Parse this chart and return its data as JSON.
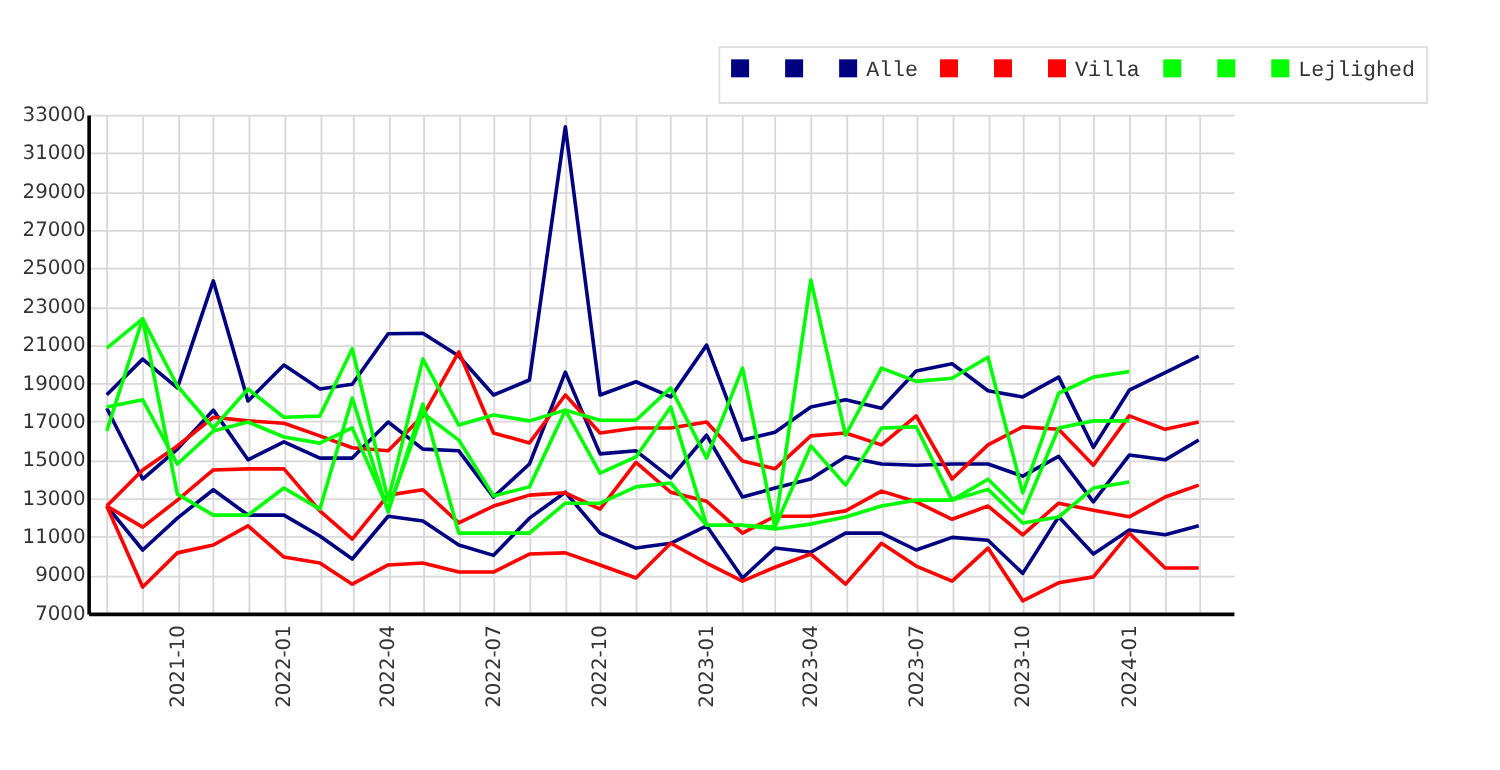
{
  "chart_data": {
    "type": "line",
    "x": [
      "2021-08",
      "2021-09",
      "2021-10",
      "2021-11",
      "2021-12",
      "2022-01",
      "2022-02",
      "2022-03",
      "2022-04",
      "2022-05",
      "2022-06",
      "2022-07",
      "2022-08",
      "2022-09",
      "2022-10",
      "2022-11",
      "2022-12",
      "2023-01",
      "2023-02",
      "2023-03",
      "2023-04",
      "2023-05",
      "2023-06",
      "2023-07",
      "2023-08",
      "2023-09",
      "2023-10",
      "2023-11",
      "2023-12",
      "2024-01",
      "2024-02",
      "2024-03"
    ],
    "series": [
      {
        "color": "#000080",
        "values": [
          18400,
          20260,
          18760,
          24340,
          18080,
          19950,
          18700,
          18950,
          21580,
          21610,
          20420,
          18390,
          19170,
          32370,
          18390,
          19080,
          18290,
          20990,
          16040,
          16450,
          17760,
          18140,
          17700,
          19640,
          20020,
          18610,
          18290,
          19320,
          15660,
          18640,
          19550,
          20420
        ]
      },
      {
        "color": "#000080",
        "values": [
          17700,
          14010,
          15570,
          17600,
          15010,
          15950,
          15100,
          15100,
          16980,
          15570,
          15480,
          13070,
          14790,
          19580,
          15320,
          15480,
          14070,
          16290,
          13070,
          13540,
          14010,
          15170,
          14790,
          14730,
          14790,
          14790,
          14160,
          15190,
          12820,
          15260,
          15010,
          16040
        ]
      },
      {
        "name": "Alle",
        "color": "#000080",
        "values": [
          12600,
          10310,
          11970,
          13450,
          12130,
          12130,
          11040,
          9840,
          12070,
          11820,
          10570,
          10030,
          11970,
          13320,
          11190,
          10410,
          10660,
          11570,
          8850,
          10410,
          10190,
          11190,
          11190,
          10310,
          10970,
          10820,
          9090,
          12040,
          10100,
          11350,
          11100,
          11570
        ]
      },
      {
        "color": "#ff0000",
        "values": [
          12600,
          14480,
          15730,
          17230,
          17040,
          16920,
          16260,
          15640,
          15480,
          17300,
          20640,
          16410,
          15890,
          18390,
          16410,
          16670,
          16670,
          16980,
          14950,
          14540,
          16260,
          16410,
          15790,
          17300,
          14010,
          15790,
          16730,
          16600,
          14730,
          17300,
          16600,
          16980
        ]
      },
      {
        "color": "#ff0000",
        "values": [
          12600,
          11500,
          12910,
          14480,
          14540,
          14540,
          12350,
          10880,
          13170,
          13450,
          11720,
          12600,
          13170,
          13290,
          12440,
          14880,
          13320,
          12850,
          11190,
          12070,
          12070,
          12350,
          13380,
          12820,
          11910,
          12600,
          11100,
          12750,
          12380,
          12040,
          13070,
          13690
        ]
      },
      {
        "name": "Villa",
        "color": "#ff0000",
        "values": [
          12600,
          8380,
          10160,
          10570,
          11570,
          9940,
          9630,
          8530,
          9530,
          9630,
          9160,
          9160,
          10100,
          10160,
          9530,
          8850,
          10660,
          9630,
          8690,
          9410,
          10100,
          8530,
          10660,
          9470,
          8690,
          10410,
          7660,
          8600,
          8910,
          11190,
          9370,
          9370
        ]
      },
      {
        "color": "#00ff00",
        "values": [
          20830,
          22360,
          18860,
          16670,
          18700,
          17230,
          17290,
          20800,
          12910,
          20260,
          16820,
          17350,
          17040,
          17600,
          17070,
          17070,
          18760,
          15100,
          19790,
          11500,
          24390,
          16290,
          19790,
          19100,
          19260,
          20360,
          13290,
          18480,
          19320,
          19610,
          null,
          null
        ]
      },
      {
        "color": "#00ff00",
        "values": [
          17760,
          18140,
          14790,
          16510,
          16980,
          16200,
          15880,
          16670,
          12440,
          17450,
          16040,
          13130,
          13600,
          17600,
          14320,
          15160,
          17760,
          11600,
          11600,
          11500,
          15730,
          13690,
          16670,
          16730,
          12910,
          14000,
          12220,
          16670,
          17040,
          17040,
          null,
          null
        ]
      },
      {
        "name": "Lejlighed",
        "color": "#00ff00",
        "values": [
          16510,
          22360,
          13220,
          12130,
          12130,
          13540,
          12440,
          18230,
          12290,
          17920,
          11190,
          11190,
          11190,
          12750,
          12750,
          13600,
          13800,
          11600,
          11600,
          11400,
          11660,
          12030,
          12600,
          12910,
          12910,
          13470,
          11720,
          12030,
          13540,
          13850,
          null,
          null
        ]
      }
    ],
    "xlim": [
      "2021-07-16",
      "2024-03-31"
    ],
    "xticks": [
      {
        "value": "2021-08",
        "label": null
      },
      {
        "value": "2021-09",
        "label": null
      },
      {
        "value": "2021-10",
        "label": "2021-10"
      },
      {
        "value": "2021-11",
        "label": null
      },
      {
        "value": "2021-12",
        "label": null
      },
      {
        "value": "2022-01",
        "label": "2022-01"
      },
      {
        "value": "2022-02",
        "label": null
      },
      {
        "value": "2022-03",
        "label": null
      },
      {
        "value": "2022-04",
        "label": "2022-04"
      },
      {
        "value": "2022-05",
        "label": null
      },
      {
        "value": "2022-06",
        "label": null
      },
      {
        "value": "2022-07",
        "label": "2022-07"
      },
      {
        "value": "2022-08",
        "label": null
      },
      {
        "value": "2022-09",
        "label": null
      },
      {
        "value": "2022-10",
        "label": "2022-10"
      },
      {
        "value": "2022-11",
        "label": null
      },
      {
        "value": "2022-12",
        "label": null
      },
      {
        "value": "2023-01",
        "label": "2023-01"
      },
      {
        "value": "2023-02",
        "label": null
      },
      {
        "value": "2023-03",
        "label": null
      },
      {
        "value": "2023-04",
        "label": "2023-04"
      },
      {
        "value": "2023-05",
        "label": null
      },
      {
        "value": "2023-06",
        "label": null
      },
      {
        "value": "2023-07",
        "label": "2023-07"
      },
      {
        "value": "2023-08",
        "label": null
      },
      {
        "value": "2023-09",
        "label": null
      },
      {
        "value": "2023-10",
        "label": "2023-10"
      },
      {
        "value": "2023-11",
        "label": null
      },
      {
        "value": "2023-12",
        "label": null
      },
      {
        "value": "2024-01",
        "label": "2024-01"
      },
      {
        "value": "2024-02",
        "label": null
      },
      {
        "value": "2024-03",
        "label": null
      }
    ],
    "ylim": [
      7000,
      33000
    ],
    "yticks": [
      7000,
      9000,
      11000,
      13000,
      15000,
      17000,
      19000,
      21000,
      23000,
      25000,
      27000,
      29000,
      31000,
      33000
    ],
    "grid": true,
    "legend": "top right",
    "marker": "none",
    "line_style": "solid"
  }
}
